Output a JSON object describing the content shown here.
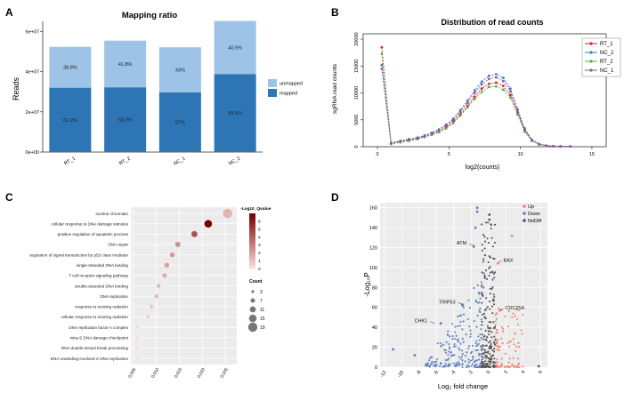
{
  "panels": {
    "A": {
      "label": "A"
    },
    "B": {
      "label": "B"
    },
    "C": {
      "label": "C"
    },
    "D": {
      "label": "D"
    }
  },
  "chart_data": [
    {
      "id": "A",
      "type": "bar",
      "stacked": true,
      "title": "Mapping ratio",
      "ylabel": "Reads",
      "xlabel": "",
      "ylim": [
        0,
        65000000
      ],
      "yticks": [
        0,
        20000000,
        40000000,
        60000000
      ],
      "yticklabels": [
        "0e+00",
        "2e+07",
        "4e+07",
        "6e+07"
      ],
      "categories": [
        "RT_1",
        "RT_2",
        "NC_1",
        "NC_2"
      ],
      "series": [
        {
          "name": "mapped",
          "color": "#2e75b6",
          "values": [
            32000000,
            32200000,
            29700000,
            38800000
          ],
          "labels": [
            "61.2%",
            "58.2%",
            "57%",
            "59.5%"
          ]
        },
        {
          "name": "unmapped",
          "color": "#9dc3e6",
          "values": [
            20300000,
            23200000,
            22400000,
            26400000
          ],
          "labels": [
            "38.8%",
            "41.8%",
            "43%",
            "40.5%"
          ]
        }
      ],
      "legend": [
        "unmapped",
        "mapped"
      ],
      "legend_position": "right"
    },
    {
      "id": "B",
      "type": "line",
      "title": "Distribution of read counts",
      "xlabel": "log2(counts)",
      "ylabel": "sgRNA read counts",
      "xlim": [
        -1,
        16
      ],
      "ylim": [
        0,
        21000
      ],
      "xticks": [
        0,
        5,
        10,
        15
      ],
      "yticks": [
        0,
        5000,
        10000,
        15000,
        20000
      ],
      "x": [
        0.3,
        0.95,
        1.6,
        2.2,
        2.8,
        3.3,
        3.8,
        4.3,
        4.8,
        5.3,
        5.8,
        6.3,
        6.8,
        7.3,
        7.8,
        8.3,
        8.8,
        9.3,
        9.8,
        10.3,
        10.8,
        11.3,
        11.8,
        12.3,
        12.8,
        13.5
      ],
      "series": [
        {
          "name": "RT_1",
          "color": "#e41a1c",
          "values": [
            18500,
            600,
            900,
            1200,
            1500,
            1900,
            2300,
            2800,
            3600,
            4600,
            6000,
            7600,
            9300,
            10800,
            11700,
            11900,
            11300,
            9600,
            6300,
            3000,
            1200,
            500,
            200,
            120,
            80,
            50
          ]
        },
        {
          "name": "NC_2",
          "color": "#377eb8",
          "values": [
            15200,
            700,
            1100,
            1400,
            1700,
            2100,
            2600,
            3200,
            4100,
            5200,
            6800,
            8600,
            10500,
            12100,
            13200,
            13500,
            12800,
            10800,
            7000,
            3400,
            1300,
            500,
            200,
            100,
            60,
            40
          ]
        },
        {
          "name": "RT_2",
          "color": "#4daf4a",
          "values": [
            17300,
            500,
            800,
            1100,
            1400,
            1800,
            2200,
            2700,
            3400,
            4400,
            5800,
            7300,
            8900,
            10200,
            11100,
            11200,
            10600,
            9100,
            6000,
            2800,
            1100,
            400,
            180,
            100,
            60,
            40
          ]
        },
        {
          "name": "NC_1",
          "color": "#984ea3",
          "values": [
            14500,
            700,
            1000,
            1300,
            1600,
            2000,
            2500,
            3100,
            3900,
            5000,
            6500,
            8200,
            10000,
            11600,
            12600,
            12900,
            12200,
            10300,
            6700,
            3200,
            1200,
            500,
            200,
            110,
            70,
            40
          ]
        }
      ],
      "legend_position": "top-right"
    },
    {
      "id": "C",
      "type": "scatter",
      "subtype": "dot-plot",
      "xlabel": "",
      "ylabel": "",
      "xlim": [
        0.0045,
        0.0275
      ],
      "xticks": [
        0.005,
        0.01,
        0.015,
        0.02,
        0.025
      ],
      "xticklabels": [
        "0.005",
        "0.010",
        "0.015",
        "0.020",
        "0.025"
      ],
      "categories": [
        "nuclear chromatin",
        "cellular response to DNA damage stimulus",
        "positive regulation of apoptotic process",
        "DNA repair",
        "regulation of signal transduction by p53 class mediator",
        "single-stranded DNA binding",
        "T cell receptor signaling pathway",
        "double-stranded DNA binding",
        "DNA replication",
        "response to ionizing radiation",
        "cellular response to ionizing radiation",
        "DNA replication factor A complex",
        "intra-S DNA damage checkpoint",
        "DNA double-strand break processing",
        "DNA unwinding involved in DNA replication"
      ],
      "x": [
        0.0255,
        0.0213,
        0.0183,
        0.0147,
        0.0135,
        0.0123,
        0.0118,
        0.0105,
        0.0101,
        0.009,
        0.0082,
        0.0059,
        0.0059,
        0.0059,
        0.0059
      ],
      "neg_log10_qvalue": [
        1.5,
        7.0,
        4.5,
        2.6,
        2.3,
        2.1,
        1.8,
        1.4,
        1.3,
        1.0,
        0.8,
        0.4,
        0.3,
        0.3,
        0.2
      ],
      "count": [
        19,
        15,
        11,
        9,
        8,
        8,
        7,
        6,
        6,
        5,
        4,
        3,
        3,
        3,
        3
      ],
      "colorbar": {
        "title": "-Log10_Qvalue",
        "ticks": [
          0,
          1,
          2,
          3,
          4,
          5,
          6
        ]
      },
      "size_legend": {
        "title": "Count",
        "values": [
          3,
          7,
          11,
          15,
          19
        ]
      }
    },
    {
      "id": "D",
      "type": "scatter",
      "subtype": "volcano",
      "xlabel": "Log₂ fold change",
      "ylabel": "-Log₁₀P",
      "xlim": [
        -12.5,
        6.8
      ],
      "ylim": [
        0,
        165
      ],
      "xticks": [
        -12,
        -10,
        -8,
        -6,
        -4,
        -2,
        0,
        2,
        4,
        6
      ],
      "yticks": [
        0,
        20,
        40,
        60,
        80,
        100,
        120,
        140,
        160
      ],
      "legend": [
        {
          "name": "Up",
          "color": "#f08070"
        },
        {
          "name": "Down",
          "color": "#5b7fbf"
        },
        {
          "name": "NoDiff",
          "color": "#555555"
        }
      ],
      "legend_position": "top-right",
      "annotations": [
        {
          "text": "ATM",
          "x": -1.7,
          "y": 122
        },
        {
          "text": "BAX",
          "x": 1.1,
          "y": 105
        },
        {
          "text": "TRIP53",
          "x": -3.0,
          "y": 63
        },
        {
          "text": "CDC25A",
          "x": 1.3,
          "y": 57
        },
        {
          "text": "CHK1",
          "x": -6.2,
          "y": 44
        }
      ],
      "highlight_points": [
        {
          "x": -1.7,
          "y": 121,
          "group": "Down"
        },
        {
          "x": 1.1,
          "y": 104,
          "group": "Up"
        },
        {
          "x": -3.0,
          "y": 62,
          "group": "Down"
        },
        {
          "x": 1.3,
          "y": 57,
          "group": "Up"
        },
        {
          "x": -5.5,
          "y": 44,
          "group": "Down"
        },
        {
          "x": -1.3,
          "y": 160,
          "group": "Down"
        },
        {
          "x": -1.3,
          "y": 156,
          "group": "Down"
        },
        {
          "x": 0.1,
          "y": 153,
          "group": "NoDiff"
        },
        {
          "x": 0.1,
          "y": 148,
          "group": "NoDiff"
        },
        {
          "x": -1.5,
          "y": 140,
          "group": "Down"
        },
        {
          "x": 2.7,
          "y": 132,
          "group": "Up"
        },
        {
          "x": -11,
          "y": 18,
          "group": "Down"
        },
        {
          "x": -8.5,
          "y": 12,
          "group": "Down"
        },
        {
          "x": 5.8,
          "y": 1,
          "group": "NoDiff"
        }
      ]
    }
  ]
}
